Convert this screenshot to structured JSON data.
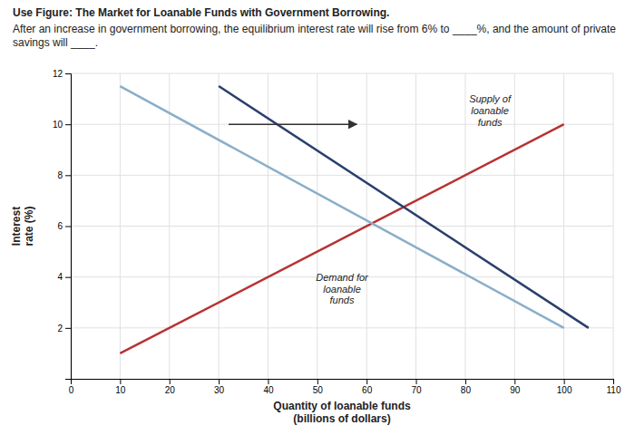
{
  "chart_data": {
    "type": "line",
    "title": "Use Figure: The Market for Loanable Funds with Government Borrowing.",
    "subtitle": "After an increase in government borrowing, the equilibrium interest rate will rise from 6% to ____%, and the amount of private savings will ____.",
    "xlabel": "Quantity of loanable funds\n(billions of dollars)",
    "ylabel": "Interest\nrate (%)",
    "series": [
      {
        "color": "#b83232",
        "x": [
          10,
          100
        ],
        "values": [
          1,
          10
        ]
      },
      {
        "color": "#8aaec8",
        "x": [
          10,
          100
        ],
        "values": [
          11.5,
          2
        ]
      },
      {
        "color": "#2b3f6e",
        "x": [
          30,
          105
        ],
        "values": [
          11.5,
          2
        ]
      }
    ],
    "annotations": [
      {
        "text": "Supply of\nloanable\nfunds",
        "x": 85,
        "y": 10.5
      },
      {
        "text": "Demand for\nloanable\nfunds",
        "x": 55,
        "y": 3.5
      },
      {
        "type": "arrow",
        "x": [
          32,
          58
        ],
        "y": [
          10.0,
          10.0
        ],
        "color": "#333333"
      }
    ],
    "xlim": [
      0,
      110
    ],
    "ylim": [
      0,
      12
    ],
    "xticks": [
      0,
      10,
      20,
      30,
      40,
      50,
      60,
      70,
      80,
      90,
      100,
      110
    ],
    "yticks": [
      2,
      4,
      6,
      8,
      10,
      12
    ],
    "grid": true
  }
}
